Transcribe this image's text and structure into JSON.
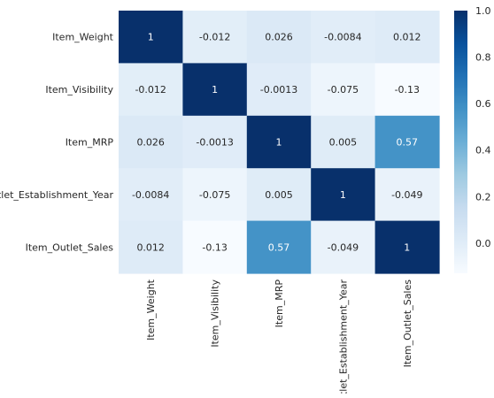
{
  "chart_data": {
    "type": "heatmap",
    "title": "",
    "xlabel": "",
    "ylabel": "",
    "row_labels": [
      "Item_Weight",
      "Item_Visibility",
      "Item_MRP",
      "Outlet_Establishment_Year",
      "Item_Outlet_Sales"
    ],
    "col_labels": [
      "Item_Weight",
      "Item_Visibility",
      "Item_MRP",
      "Outlet_Establishment_Year",
      "Item_Outlet_Sales"
    ],
    "values": [
      [
        1,
        -0.012,
        0.026,
        -0.0084,
        0.012
      ],
      [
        -0.012,
        1,
        -0.0013,
        -0.075,
        -0.13
      ],
      [
        0.026,
        -0.0013,
        1,
        0.005,
        0.57
      ],
      [
        -0.0084,
        -0.075,
        0.005,
        1,
        -0.049
      ],
      [
        0.012,
        -0.13,
        0.57,
        -0.049,
        1
      ]
    ],
    "annotations": [
      [
        "1",
        "-0.012",
        "0.026",
        "-0.0084",
        "0.012"
      ],
      [
        "-0.012",
        "1",
        "-0.0013",
        "-0.075",
        "-0.13"
      ],
      [
        "0.026",
        "-0.0013",
        "1",
        "0.005",
        "0.57"
      ],
      [
        "-0.0084",
        "-0.075",
        "0.005",
        "1",
        "-0.049"
      ],
      [
        "0.012",
        "-0.13",
        "0.57",
        "-0.049",
        "1"
      ]
    ],
    "colorbar": {
      "vmin": -0.13,
      "vmax": 1.0,
      "ticks": [
        0.0,
        0.2,
        0.4,
        0.6,
        0.8,
        1.0
      ],
      "tick_labels": [
        "0.0",
        "0.2",
        "0.4",
        "0.6",
        "0.8",
        "1.0"
      ],
      "colormap": "Blues"
    },
    "colors": {
      "text_on_dark": "#ffffff",
      "text_on_light": "#262626",
      "label_text": "#262626"
    }
  }
}
